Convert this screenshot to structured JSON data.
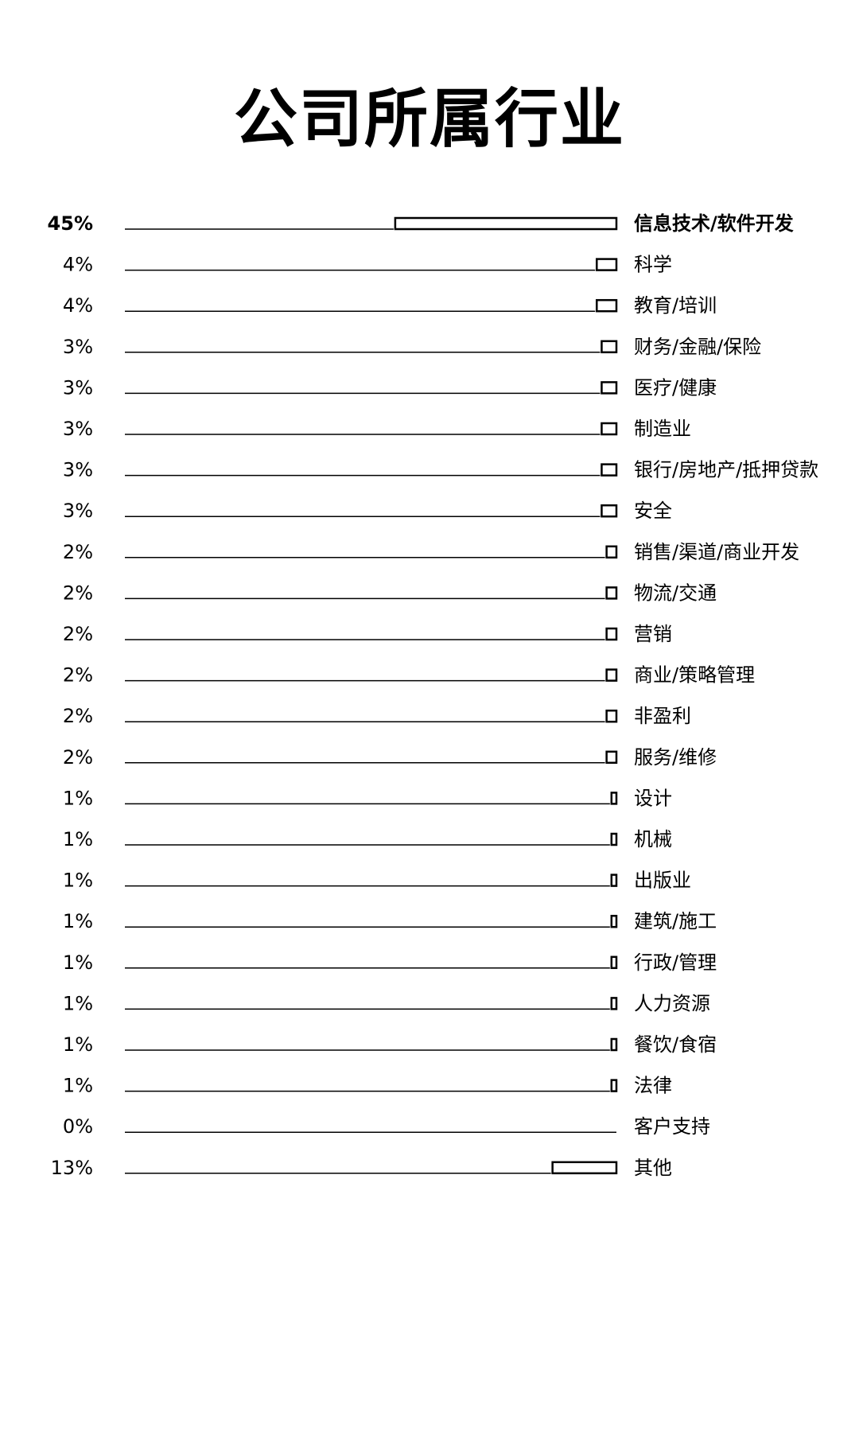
{
  "chart_data": {
    "type": "bar",
    "orientation": "horizontal",
    "title": "公司所属行业",
    "categories": [
      "信息技术/软件开发",
      "科学",
      "教育/培训",
      "财务/金融/保险",
      "医疗/健康",
      "制造业",
      "银行/房地产/抵押贷款",
      "安全",
      "销售/渠道/商业开发",
      "物流/交通",
      "营销",
      "商业/策略管理",
      "非盈利",
      "服务/维修",
      "设计",
      "机械",
      "出版业",
      "建筑/施工",
      "行政/管理",
      "人力资源",
      "餐饮/食宿",
      "法律",
      "客户支持",
      "其他"
    ],
    "values": [
      45,
      4,
      4,
      3,
      3,
      3,
      3,
      3,
      2,
      2,
      2,
      2,
      2,
      2,
      1,
      1,
      1,
      1,
      1,
      1,
      1,
      1,
      0,
      13
    ],
    "value_labels": [
      "45%",
      "4%",
      "4%",
      "3%",
      "3%",
      "3%",
      "3%",
      "3%",
      "2%",
      "2%",
      "2%",
      "2%",
      "2%",
      "2%",
      "1%",
      "1%",
      "1%",
      "1%",
      "1%",
      "1%",
      "1%",
      "1%",
      "0%",
      "13%"
    ],
    "xlim": [
      0,
      100
    ],
    "unit": "%",
    "grid": false,
    "legend": "none",
    "bar_fill": "#ffffff",
    "bar_stroke": "#000000"
  }
}
